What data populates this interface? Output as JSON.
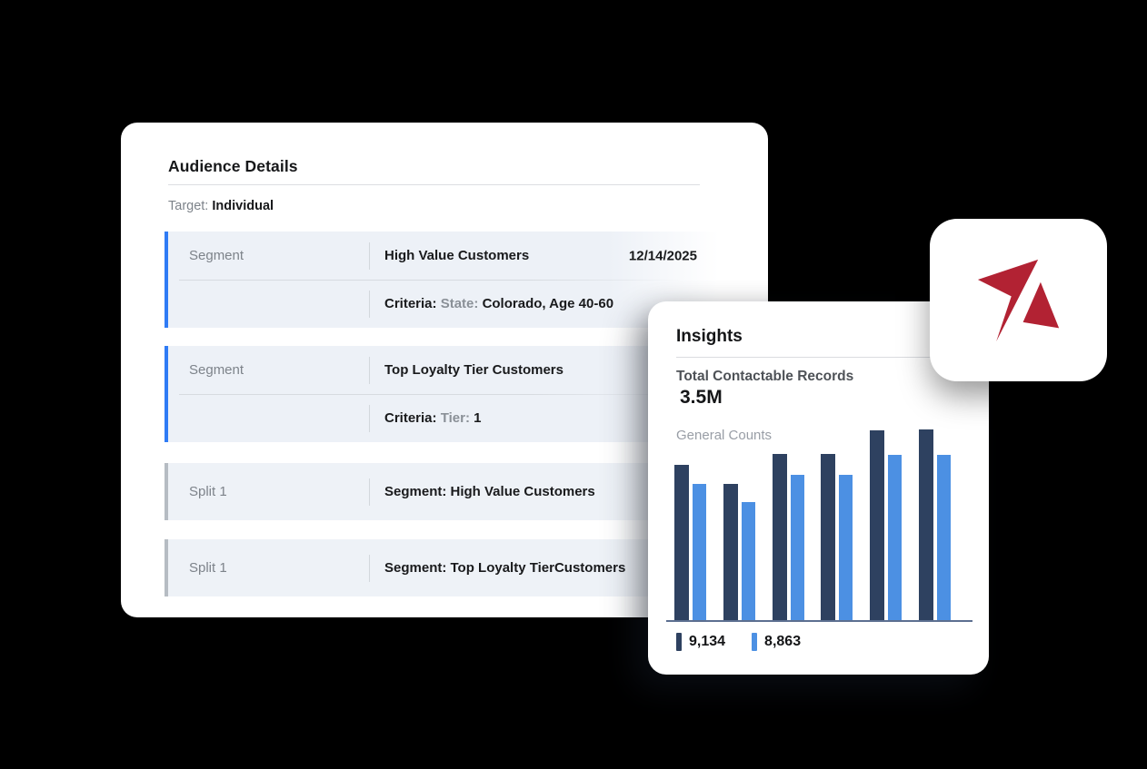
{
  "colors": {
    "background": "#000000",
    "card": "#ffffff",
    "segment_accent_blue": "#2f7bf5",
    "split_accent_gray": "#b6bcc3",
    "row_background": "#edf1f7",
    "bar_dark_navy": "#2e4160",
    "bar_light_blue": "#4c90e3",
    "axis": "#5c6f90",
    "logo_red": "#b22233"
  },
  "audience": {
    "title": "Audience Details",
    "target_label": "Target:",
    "target_value": "Individual",
    "segments": [
      {
        "label": "Segment",
        "name": "High Value Customers",
        "date": "12/14/2025",
        "criteria_label": "Criteria:",
        "criteria_key": "State:",
        "criteria_value": "Colorado, Age 40-60"
      },
      {
        "label": "Segment",
        "name": "Top Loyalty Tier Customers",
        "criteria_label": "Criteria:",
        "criteria_key": "Tier:",
        "criteria_value": "1"
      }
    ],
    "splits": [
      {
        "label": "Split 1",
        "value": "Segment: High Value Customers"
      },
      {
        "label": "Split 1",
        "value": "Segment: Top Loyalty TierCustomers"
      }
    ]
  },
  "insights": {
    "title": "Insights",
    "total_label": "Total Contactable Records",
    "total_value": "3.5M"
  },
  "chart_data": {
    "type": "bar",
    "title": "General Counts",
    "group_count": 6,
    "axis_labels_visible": false,
    "legend_position": "bottom",
    "series": [
      {
        "name": "9,134",
        "color": "#2e4160",
        "height_pct": [
          81.4,
          71.4,
          87.1,
          87.1,
          99.5,
          100
        ],
        "values_est": [
          7440,
          6530,
          7960,
          7960,
          9090,
          9134
        ]
      },
      {
        "name": "8,863",
        "color": "#4c90e3",
        "height_pct": [
          71.4,
          61.9,
          76.2,
          76.2,
          86.7,
          86.7
        ],
        "values_est": [
          7300,
          6330,
          7790,
          7790,
          8860,
          8863
        ]
      }
    ],
    "legend": [
      {
        "label": "9,134",
        "color": "#2e4160"
      },
      {
        "label": "8,863",
        "color": "#4c90e3"
      }
    ]
  },
  "logo": {
    "name": "brand-arrow-logo",
    "color": "#b22233"
  }
}
